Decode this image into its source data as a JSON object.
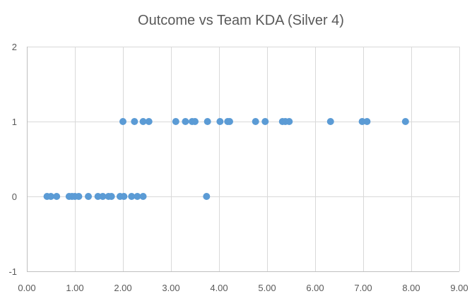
{
  "chart_data": {
    "type": "scatter",
    "title": "Outcome vs Team KDA (Silver 4)",
    "xlabel": "",
    "ylabel": "",
    "xlim": [
      0,
      9
    ],
    "ylim": [
      -1,
      2
    ],
    "x_ticks": [
      0,
      1,
      2,
      3,
      4,
      5,
      6,
      7,
      8,
      9
    ],
    "x_tick_labels": [
      "0.00",
      "1.00",
      "2.00",
      "3.00",
      "4.00",
      "5.00",
      "6.00",
      "7.00",
      "8.00",
      "9.00"
    ],
    "y_ticks": [
      -1,
      0,
      1,
      2
    ],
    "y_tick_labels": [
      "-1",
      "0",
      "1",
      "2"
    ],
    "grid": "vertical and horizontal major gridlines",
    "legend": "none",
    "marker_color": "#5b9bd5",
    "series": [
      {
        "points": [
          {
            "x": 0.42,
            "y": 0
          },
          {
            "x": 0.5,
            "y": 0
          },
          {
            "x": 0.62,
            "y": 0
          },
          {
            "x": 0.88,
            "y": 0
          },
          {
            "x": 0.94,
            "y": 0
          },
          {
            "x": 1.0,
            "y": 0
          },
          {
            "x": 1.08,
            "y": 0
          },
          {
            "x": 1.28,
            "y": 0
          },
          {
            "x": 1.48,
            "y": 0
          },
          {
            "x": 1.58,
            "y": 0
          },
          {
            "x": 1.7,
            "y": 0
          },
          {
            "x": 1.76,
            "y": 0
          },
          {
            "x": 1.94,
            "y": 0
          },
          {
            "x": 2.02,
            "y": 0
          },
          {
            "x": 2.18,
            "y": 0
          },
          {
            "x": 2.3,
            "y": 0
          },
          {
            "x": 2.42,
            "y": 0
          },
          {
            "x": 3.74,
            "y": 0
          },
          {
            "x": 2.0,
            "y": 1
          },
          {
            "x": 2.24,
            "y": 1
          },
          {
            "x": 2.42,
            "y": 1
          },
          {
            "x": 2.54,
            "y": 1
          },
          {
            "x": 3.1,
            "y": 1
          },
          {
            "x": 3.3,
            "y": 1
          },
          {
            "x": 3.44,
            "y": 1
          },
          {
            "x": 3.5,
            "y": 1
          },
          {
            "x": 3.76,
            "y": 1
          },
          {
            "x": 4.02,
            "y": 1
          },
          {
            "x": 4.18,
            "y": 1
          },
          {
            "x": 4.22,
            "y": 1
          },
          {
            "x": 4.76,
            "y": 1
          },
          {
            "x": 4.96,
            "y": 1
          },
          {
            "x": 5.32,
            "y": 1
          },
          {
            "x": 5.38,
            "y": 1
          },
          {
            "x": 5.46,
            "y": 1
          },
          {
            "x": 6.32,
            "y": 1
          },
          {
            "x": 6.98,
            "y": 1
          },
          {
            "x": 7.08,
            "y": 1
          },
          {
            "x": 7.88,
            "y": 1
          }
        ]
      }
    ]
  }
}
